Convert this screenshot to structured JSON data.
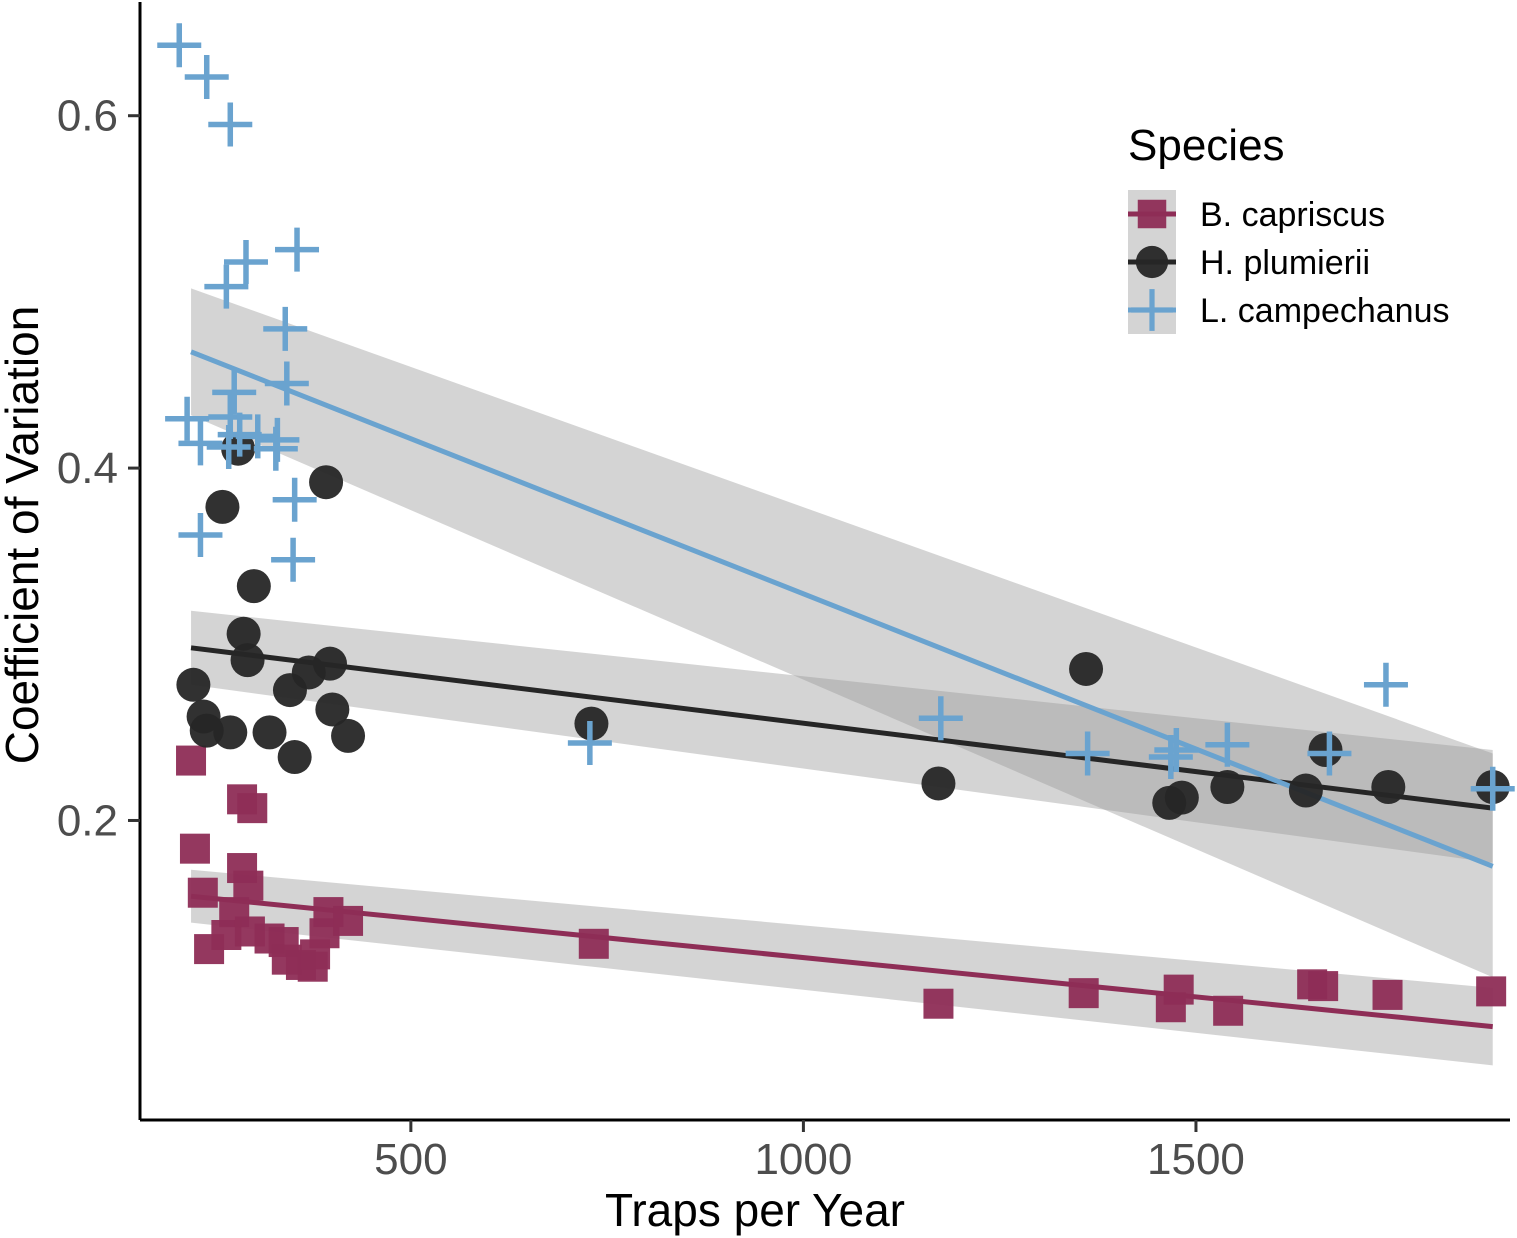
{
  "chart_data": {
    "type": "scatter",
    "title": "",
    "xlabel": "Traps per Year",
    "ylabel": "Coefficient of Variation",
    "xlim": [
      155,
      1900
    ],
    "ylim": [
      0.03,
      0.66
    ],
    "xticks": [
      500,
      1000,
      1500
    ],
    "yticks": [
      0.2,
      0.4,
      0.6
    ],
    "xtick_labels": [
      "500",
      "1000",
      "1500"
    ],
    "ytick_labels": [
      "0.2",
      "0.4",
      "0.6"
    ],
    "grid": false,
    "legend": {
      "title": "Species",
      "position": "top-right"
    },
    "series": [
      {
        "name": "B. capriscus",
        "marker": "square",
        "color": "#8e2d56",
        "points": [
          [
            220,
            0.234
          ],
          [
            225,
            0.184
          ],
          [
            235,
            0.159
          ],
          [
            243,
            0.127
          ],
          [
            265,
            0.135
          ],
          [
            275,
            0.148
          ],
          [
            285,
            0.212
          ],
          [
            285,
            0.173
          ],
          [
            293,
            0.163
          ],
          [
            295,
            0.137
          ],
          [
            298,
            0.207
          ],
          [
            320,
            0.133
          ],
          [
            338,
            0.131
          ],
          [
            342,
            0.121
          ],
          [
            360,
            0.118
          ],
          [
            375,
            0.117
          ],
          [
            378,
            0.124
          ],
          [
            390,
            0.136
          ],
          [
            395,
            0.148
          ],
          [
            420,
            0.143
          ],
          [
            733,
            0.13
          ],
          [
            1172,
            0.096
          ],
          [
            1357,
            0.102
          ],
          [
            1468,
            0.094
          ],
          [
            1478,
            0.104
          ],
          [
            1541,
            0.092
          ],
          [
            1648,
            0.107
          ],
          [
            1662,
            0.106
          ],
          [
            1744,
            0.101
          ],
          [
            1876,
            0.103
          ]
        ],
        "fit": {
          "x": [
            220,
            1878
          ],
          "y": [
            0.157,
            0.083
          ]
        },
        "band": {
          "x": [
            220,
            1878
          ],
          "lower": [
            0.142,
            0.061
          ],
          "upper": [
            0.172,
            0.105
          ]
        }
      },
      {
        "name": "H. plumierii",
        "marker": "circle",
        "color": "#262626",
        "points": [
          [
            223,
            0.277
          ],
          [
            236,
            0.259
          ],
          [
            240,
            0.251
          ],
          [
            260,
            0.378
          ],
          [
            270,
            0.25
          ],
          [
            280,
            0.411
          ],
          [
            287,
            0.306
          ],
          [
            292,
            0.291
          ],
          [
            300,
            0.333
          ],
          [
            320,
            0.25
          ],
          [
            346,
            0.274
          ],
          [
            352,
            0.236
          ],
          [
            370,
            0.284
          ],
          [
            392,
            0.392
          ],
          [
            397,
            0.289
          ],
          [
            400,
            0.263
          ],
          [
            420,
            0.248
          ],
          [
            730,
            0.255
          ],
          [
            1172,
            0.221
          ],
          [
            1360,
            0.286
          ],
          [
            1466,
            0.21
          ],
          [
            1482,
            0.213
          ],
          [
            1540,
            0.219
          ],
          [
            1640,
            0.217
          ],
          [
            1665,
            0.24
          ],
          [
            1745,
            0.219
          ],
          [
            1878,
            0.219
          ]
        ],
        "fit": {
          "x": [
            220,
            1878
          ],
          "y": [
            0.298,
            0.207
          ]
        },
        "band": {
          "x": [
            220,
            1878
          ],
          "lower": [
            0.277,
            0.176
          ],
          "upper": [
            0.319,
            0.24
          ]
        }
      },
      {
        "name": "L. campechanus",
        "marker": "plus",
        "color": "#6aa3cf",
        "points": [
          [
            205,
            0.64
          ],
          [
            240,
            0.622
          ],
          [
            270,
            0.595
          ],
          [
            215,
            0.428
          ],
          [
            232,
            0.414
          ],
          [
            232,
            0.362
          ],
          [
            265,
            0.503
          ],
          [
            290,
            0.517
          ],
          [
            275,
            0.443
          ],
          [
            270,
            0.429
          ],
          [
            282,
            0.419
          ],
          [
            268,
            0.412
          ],
          [
            305,
            0.418
          ],
          [
            330,
            0.416
          ],
          [
            328,
            0.411
          ],
          [
            342,
            0.448
          ],
          [
            355,
            0.524
          ],
          [
            340,
            0.479
          ],
          [
            352,
            0.382
          ],
          [
            350,
            0.348
          ],
          [
            728,
            0.244
          ],
          [
            1175,
            0.258
          ],
          [
            1362,
            0.238
          ],
          [
            1468,
            0.236
          ],
          [
            1475,
            0.24
          ],
          [
            1540,
            0.243
          ],
          [
            1670,
            0.238
          ],
          [
            1742,
            0.277
          ],
          [
            1878,
            0.218
          ]
        ],
        "fit": {
          "x": [
            220,
            1878
          ],
          "y": [
            0.466,
            0.174
          ]
        },
        "band": {
          "x": [
            220,
            1878
          ],
          "lower": [
            0.43,
            0.111
          ],
          "upper": [
            0.502,
            0.238
          ]
        }
      }
    ]
  }
}
